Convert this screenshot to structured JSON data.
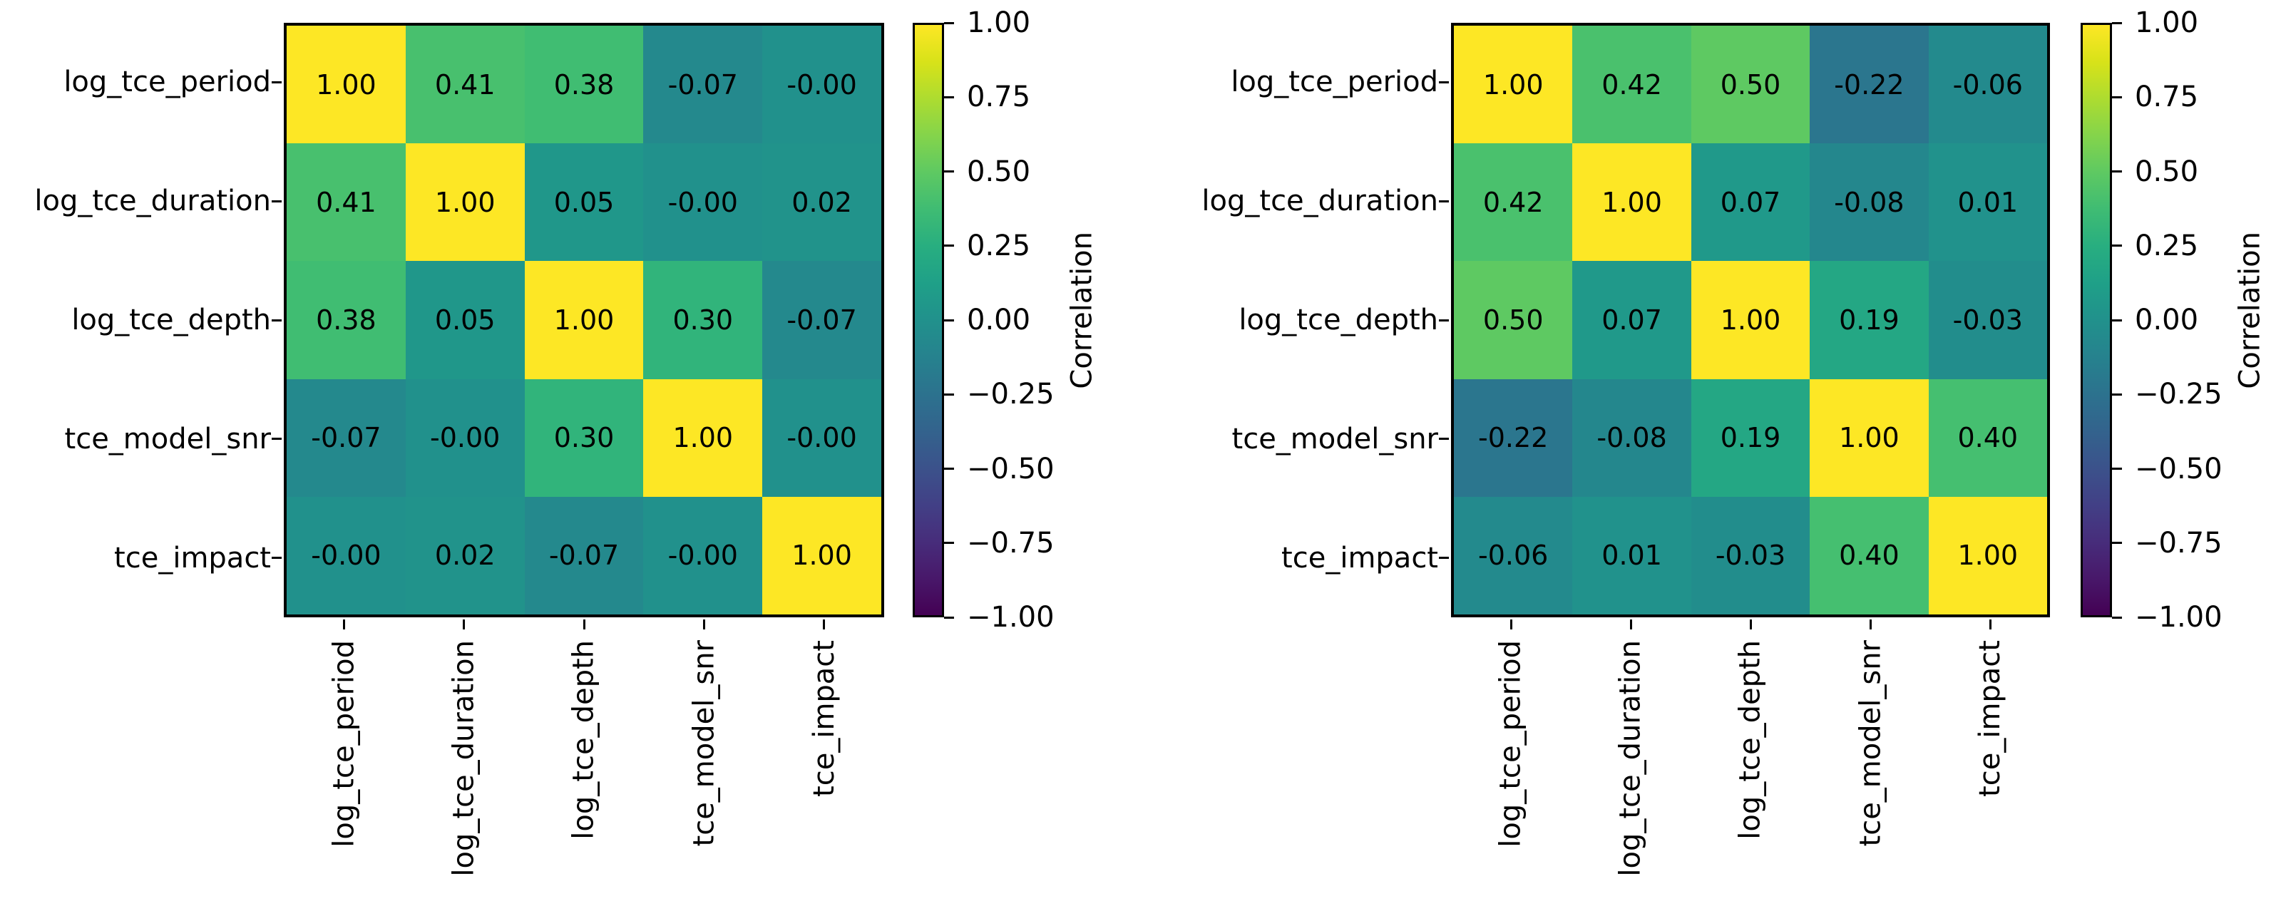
{
  "figure": {
    "background": "#ffffff",
    "text_color": "#000000",
    "colormap": {
      "name": "viridis",
      "range": [
        -1,
        1
      ],
      "stops": [
        "#440154",
        "#48186a",
        "#472d7b",
        "#424086",
        "#3b528b",
        "#33638d",
        "#2c728e",
        "#26828e",
        "#21918c",
        "#1fa088",
        "#28ae80",
        "#3fbc73",
        "#5ec962",
        "#84d44b",
        "#addc30",
        "#d8e219",
        "#fde725"
      ]
    }
  },
  "chart_data": [
    {
      "type": "heatmap",
      "panel": "left",
      "categories": [
        "log_tce_period",
        "log_tce_duration",
        "log_tce_depth",
        "tce_model_snr",
        "tce_impact"
      ],
      "cells": [
        [
          "1.00",
          "0.41",
          "0.38",
          "-0.07",
          "-0.00"
        ],
        [
          "0.41",
          "1.00",
          "0.05",
          "-0.00",
          "0.02"
        ],
        [
          "0.38",
          "0.05",
          "1.00",
          "0.30",
          "-0.07"
        ],
        [
          "-0.07",
          "-0.00",
          "0.30",
          "1.00",
          "-0.00"
        ],
        [
          "-0.00",
          "0.02",
          "-0.07",
          "-0.00",
          "1.00"
        ]
      ],
      "colorbar": {
        "label": "Correlation",
        "vmin": -1.0,
        "vmax": 1.0,
        "ticks": [
          "1.00",
          "0.75",
          "0.50",
          "0.25",
          "0.00",
          "−0.25",
          "−0.50",
          "−0.75",
          "−1.00"
        ]
      }
    },
    {
      "type": "heatmap",
      "panel": "right",
      "categories": [
        "log_tce_period",
        "log_tce_duration",
        "log_tce_depth",
        "tce_model_snr",
        "tce_impact"
      ],
      "cells": [
        [
          "1.00",
          "0.42",
          "0.50",
          "-0.22",
          "-0.06"
        ],
        [
          "0.42",
          "1.00",
          "0.07",
          "-0.08",
          "0.01"
        ],
        [
          "0.50",
          "0.07",
          "1.00",
          "0.19",
          "-0.03"
        ],
        [
          "-0.22",
          "-0.08",
          "0.19",
          "1.00",
          "0.40"
        ],
        [
          "-0.06",
          "0.01",
          "-0.03",
          "0.40",
          "1.00"
        ]
      ],
      "colorbar": {
        "label": "Correlation",
        "vmin": -1.0,
        "vmax": 1.0,
        "ticks": [
          "1.00",
          "0.75",
          "0.50",
          "0.25",
          "0.00",
          "−0.25",
          "−0.50",
          "−0.75",
          "−1.00"
        ]
      }
    }
  ]
}
